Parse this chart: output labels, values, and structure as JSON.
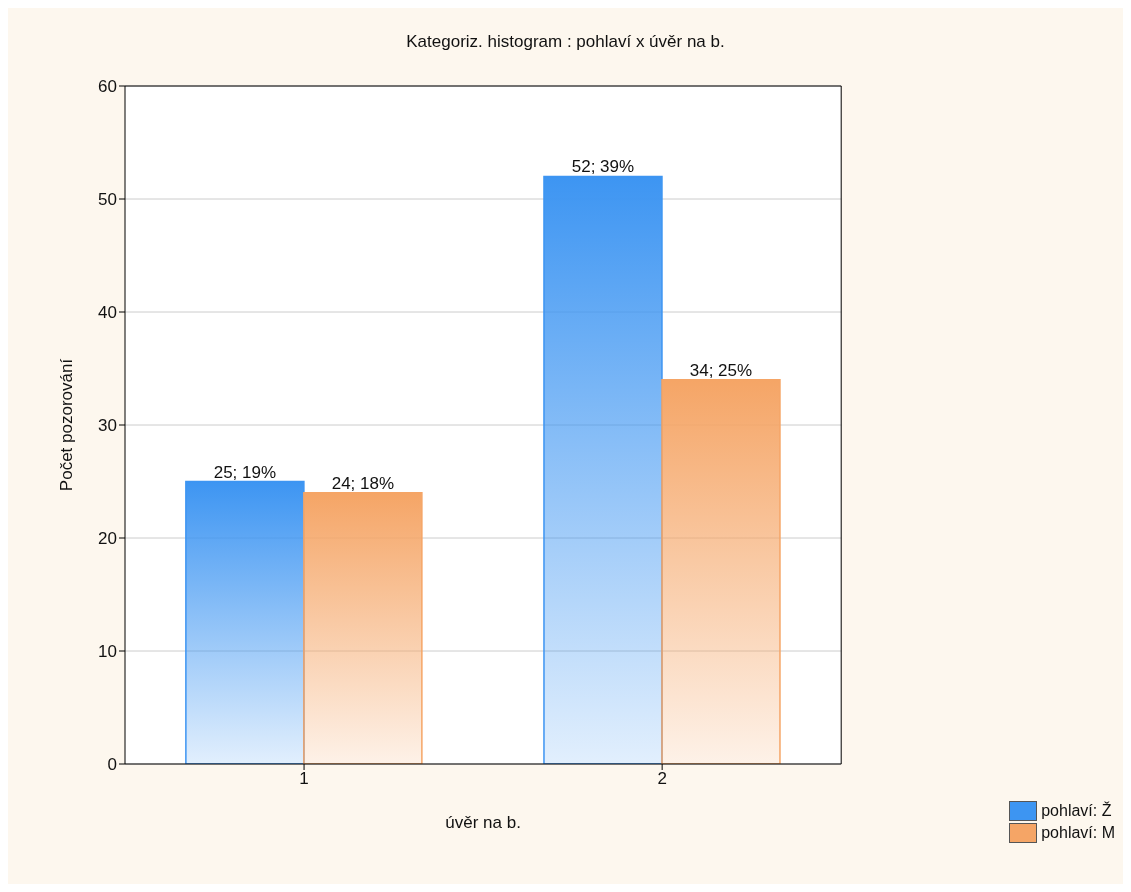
{
  "chart_data": {
    "type": "bar",
    "title": "Kategoriz. histogram : pohlaví x úvěr na b.",
    "xlabel": "úvěr na b.",
    "ylabel": "Počet pozorování",
    "categories": [
      "1",
      "2"
    ],
    "series": [
      {
        "name": "pohlaví: Ž",
        "color": "#3d95f2",
        "values": [
          25,
          52
        ],
        "value_labels": [
          "25; 19%",
          "52; 39%"
        ]
      },
      {
        "name": "pohlaví: M",
        "color": "#f5a566",
        "values": [
          24,
          34
        ],
        "value_labels": [
          "24; 18%",
          "34; 25%"
        ]
      }
    ],
    "ylim": [
      0,
      60
    ],
    "yticks": [
      0,
      10,
      20,
      30,
      40,
      50,
      60
    ],
    "grid": "y",
    "legend": "bottom right"
  }
}
